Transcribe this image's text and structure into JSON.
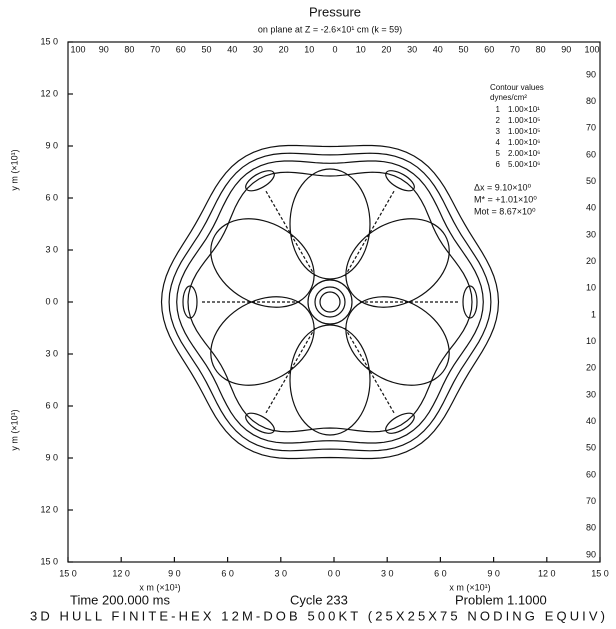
{
  "chart_data": {
    "type": "contour",
    "title": "Pressure",
    "subtitle": "on plane at Z = -2.6×10¹ cm (k = 59)",
    "xlabel": "x m (×10¹)",
    "ylabel": "y m (×10¹)",
    "xlim": [
      -150,
      150
    ],
    "ylim": [
      -150,
      150
    ],
    "xticks": [
      {
        "value": -150,
        "label": "15 0"
      },
      {
        "value": -120,
        "label": "12 0"
      },
      {
        "value": -90,
        "label": "9 0"
      },
      {
        "value": -60,
        "label": "6 0"
      },
      {
        "value": -30,
        "label": "3 0"
      },
      {
        "value": 0,
        "label": "0 0"
      },
      {
        "value": 30,
        "label": "3 0"
      },
      {
        "value": 60,
        "label": "6 0"
      },
      {
        "value": 90,
        "label": "9 0"
      },
      {
        "value": 120,
        "label": "12 0"
      },
      {
        "value": 150,
        "label": "15 0"
      }
    ],
    "yticks": [
      {
        "value": 150,
        "label": "15 0"
      },
      {
        "value": 120,
        "label": "12 0"
      },
      {
        "value": 90,
        "label": "9 0"
      },
      {
        "value": 60,
        "label": "6 0"
      },
      {
        "value": 30,
        "label": "3 0"
      },
      {
        "value": 0,
        "label": "0 0"
      },
      {
        "value": -30,
        "label": "3 0"
      },
      {
        "value": -60,
        "label": "6 0"
      },
      {
        "value": -90,
        "label": "9 0"
      },
      {
        "value": -120,
        "label": "12 0"
      },
      {
        "value": -150,
        "label": "15 0"
      }
    ],
    "top_index_labels": [
      "100",
      "90",
      "80",
      "70",
      "60",
      "50",
      "40",
      "30",
      "20",
      "10",
      "0",
      "10",
      "20",
      "30",
      "40",
      "50",
      "60",
      "70",
      "80",
      "90",
      "100"
    ],
    "right_index_labels": [
      "90",
      "80",
      "70",
      "60",
      "50",
      "40",
      "30",
      "20",
      "10",
      "1",
      "10",
      "20",
      "30",
      "40",
      "50",
      "60",
      "70",
      "80",
      "90"
    ],
    "legend_title": "Contour values",
    "legend_units": "dynes/cm²",
    "contours": [
      {
        "name": "1",
        "value": "1.00×10¹"
      },
      {
        "name": "2",
        "value": "1.00×10⁵"
      },
      {
        "name": "3",
        "value": "1.00×10⁵"
      },
      {
        "name": "4",
        "value": "1.00×10⁶"
      },
      {
        "name": "5",
        "value": "2.00×10⁶"
      },
      {
        "name": "6",
        "value": "5.00×10⁶"
      }
    ],
    "stats": [
      "Δx = 9.10×10⁰",
      "M* = +1.01×10⁰",
      "Mot = 8.67×10⁰"
    ],
    "footer": [
      "Time  200.000  ms",
      "Cycle  233",
      "Problem  1.1000"
    ],
    "footer2": "3D HULL FINITE-HEX 12M-DOB 500KT (25X25X75 NODING EQUIV)"
  }
}
